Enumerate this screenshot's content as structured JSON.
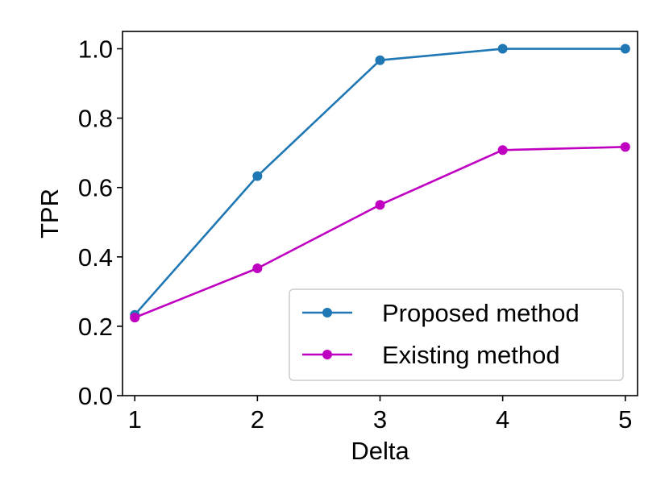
{
  "chart_data": {
    "type": "line",
    "title": "",
    "xlabel": "Delta",
    "ylabel": "TPR",
    "x": [
      1,
      2,
      3,
      4,
      5
    ],
    "xticks": [
      "1",
      "2",
      "3",
      "4",
      "5"
    ],
    "yticks": [
      "0.0",
      "0.2",
      "0.4",
      "0.6",
      "0.8",
      "1.0"
    ],
    "xlim": [
      0.9,
      5.1
    ],
    "ylim": [
      0.0,
      1.05
    ],
    "grid": false,
    "legend_position": "lower-right",
    "series": [
      {
        "name": "Proposed method",
        "color": "#1f77b4",
        "values": [
          0.233,
          0.633,
          0.967,
          1.0,
          1.0
        ]
      },
      {
        "name": "Existing method",
        "color": "#c000c0",
        "values": [
          0.225,
          0.367,
          0.55,
          0.708,
          0.717
        ]
      }
    ]
  }
}
